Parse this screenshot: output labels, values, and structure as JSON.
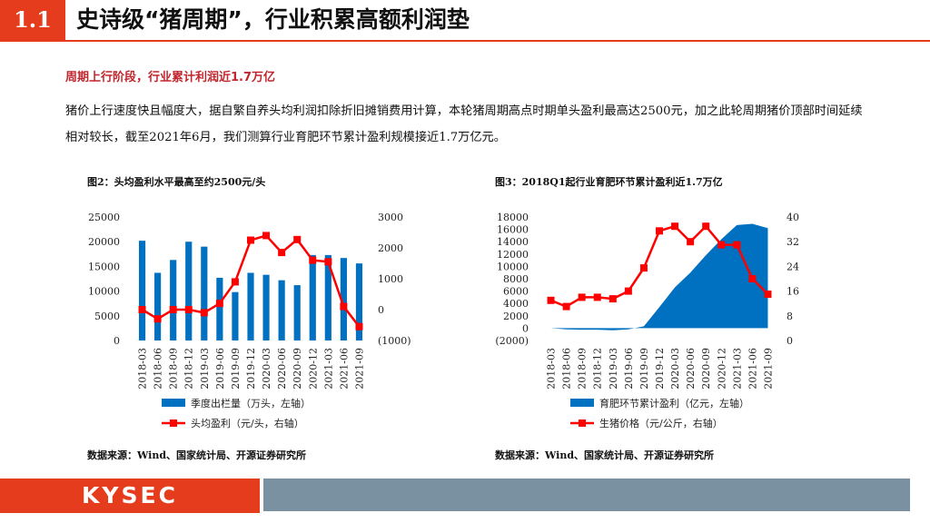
{
  "header": {
    "section_number": "1.1",
    "title": "史诗级“猪周期”，行业积累高额利润垫"
  },
  "subheading": "周期上行阶段，行业累计利润近1.7万亿",
  "paragraph": "猪价上行速度快且幅度大，据自繁自养头均利润扣除折旧摊销费用计算，本轮猪周期高点时期单头盈利最高达2500元，加之此轮周期猪价顶部时间延续相对较长，截至2021年6月，我们测算行业育肥环节累计盈利规模接近1.7万亿元。",
  "figures": [
    {
      "title": "图2：头均盈利水平最高至约2500元/头",
      "source": "数据来源：Wind、国家统计局、开源证券研究所"
    },
    {
      "title": "图3：2018Q1起行业育肥环节累计盈利近1.7万亿",
      "source": "数据来源：Wind、国家统计局、开源证券研究所"
    }
  ],
  "footer": {
    "logo": "KYSEC"
  },
  "colors": {
    "accent": "#e43c1c",
    "bar": "#0070c0",
    "line": "#ff0000",
    "footer_bar": "#7991a1"
  },
  "chart_data": [
    {
      "type": "bar",
      "title": "图2：头均盈利水平最高至约2500元/头",
      "categories": [
        "2018-03",
        "2018-06",
        "2018-09",
        "2018-12",
        "2019-03",
        "2019-06",
        "2019-09",
        "2019-12",
        "2020-03",
        "2020-06",
        "2020-09",
        "2020-12",
        "2021-03",
        "2021-06",
        "2021-09"
      ],
      "left_axis": {
        "min": 0,
        "max": 25000,
        "ticks": [
          0,
          5000,
          10000,
          15000,
          20000,
          25000
        ],
        "tick_labels": [
          "0",
          "5000",
          "10000",
          "15000",
          "20000",
          "25000"
        ]
      },
      "right_axis": {
        "min": -1000,
        "max": 3000,
        "ticks": [
          -1000,
          0,
          1000,
          2000,
          3000
        ],
        "tick_labels": [
          "(1000)",
          "0",
          "1000",
          "2000",
          "3000"
        ]
      },
      "series": [
        {
          "name": "季度出栏量（万头，左轴）",
          "type": "bar",
          "axis": "left",
          "values": [
            20200,
            13700,
            16300,
            20000,
            19000,
            12700,
            9800,
            13700,
            13300,
            12200,
            11200,
            17300,
            17300,
            16700,
            15600
          ]
        },
        {
          "name": "头均盈利（元/头，右轴）",
          "type": "line",
          "axis": "right",
          "values": [
            0,
            -300,
            0,
            0,
            -100,
            200,
            900,
            2250,
            2400,
            1850,
            2270,
            1600,
            1550,
            100,
            -550
          ]
        }
      ]
    },
    {
      "type": "area",
      "title": "图3：2018Q1起行业育肥环节累计盈利近1.7万亿",
      "categories": [
        "2018-03",
        "2018-06",
        "2018-09",
        "2018-12",
        "2019-03",
        "2019-06",
        "2019-09",
        "2019-12",
        "2020-03",
        "2020-06",
        "2020-09",
        "2020-12",
        "2021-03",
        "2021-06",
        "2021-09"
      ],
      "left_axis": {
        "min": -2000,
        "max": 18000,
        "ticks": [
          -2000,
          0,
          2000,
          4000,
          6000,
          8000,
          10000,
          12000,
          14000,
          16000,
          18000
        ],
        "tick_labels": [
          "(2000)",
          "0",
          "2000",
          "4000",
          "6000",
          "8000",
          "10000",
          "12000",
          "14000",
          "16000",
          "18000"
        ]
      },
      "right_axis": {
        "min": 0,
        "max": 40,
        "ticks": [
          0,
          8,
          16,
          24,
          32,
          40
        ],
        "tick_labels": [
          "0",
          "8",
          "16",
          "24",
          "32",
          "40"
        ]
      },
      "series": [
        {
          "name": "育肥环节累计盈利（亿元，左轴）",
          "type": "area",
          "axis": "left",
          "values": [
            0,
            -200,
            -250,
            -250,
            -350,
            -200,
            300,
            3400,
            6600,
            9000,
            11800,
            14400,
            16700,
            16900,
            16200
          ]
        },
        {
          "name": "生猪价格（元/公斤，右轴）",
          "type": "line",
          "axis": "right",
          "values": [
            13,
            11,
            14,
            14,
            13.5,
            16,
            23.5,
            35.5,
            37,
            32,
            37,
            31,
            31,
            20,
            15
          ]
        }
      ]
    }
  ]
}
